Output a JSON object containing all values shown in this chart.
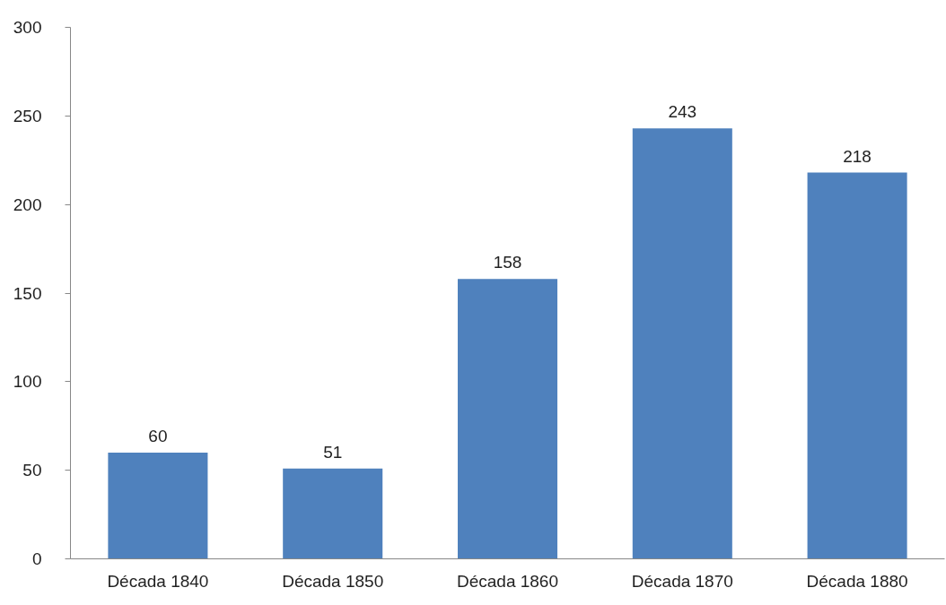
{
  "chart_data": {
    "type": "bar",
    "categories": [
      "Década 1840",
      "Década 1850",
      "Década 1860",
      "Década 1870",
      "Década 1880"
    ],
    "values": [
      60,
      51,
      158,
      243,
      218
    ],
    "color": "#4f81bd",
    "ylim": [
      0,
      300
    ],
    "yticks": [
      0,
      50,
      100,
      150,
      200,
      250,
      300
    ],
    "grid": false,
    "data_labels": true
  }
}
